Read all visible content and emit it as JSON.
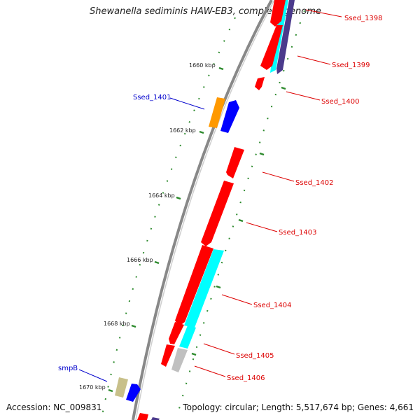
{
  "title": "Shewanella sediminis HAW-EB3, complete genome",
  "footer": {
    "accession": "Accession: NC_009831",
    "summary": "Topology: circular; Length: 5,517,674 bp; Genes: 4,661"
  },
  "ruler_labels": [
    "1660 kbp",
    "1662 kbp",
    "1664 kbp",
    "1666 kbp",
    "1668 kbp",
    "1670 kbp"
  ],
  "gene_labels": {
    "ssed_1398": "Ssed_1398",
    "ssed_1399": "Ssed_1399",
    "ssed_1400": "Ssed_1400",
    "ssed_1401": "Ssed_1401",
    "ssed_1402": "Ssed_1402",
    "ssed_1403": "Ssed_1403",
    "ssed_1404": "Ssed_1404",
    "ssed_1405": "Ssed_1405",
    "ssed_1406": "Ssed_1406",
    "smpB": "smpB"
  },
  "colors": {
    "red": "#ff0000",
    "blue": "#0000ff",
    "cyan": "#00ffff",
    "purple": "#4b3a8c",
    "orange": "#ff9900",
    "khaki": "#c8c08a",
    "grey": "#c0c0c0",
    "backbone": "#888888",
    "tick": "#2e8b2e",
    "label_red": "#dd0000",
    "label_blue": "#0000cc"
  }
}
